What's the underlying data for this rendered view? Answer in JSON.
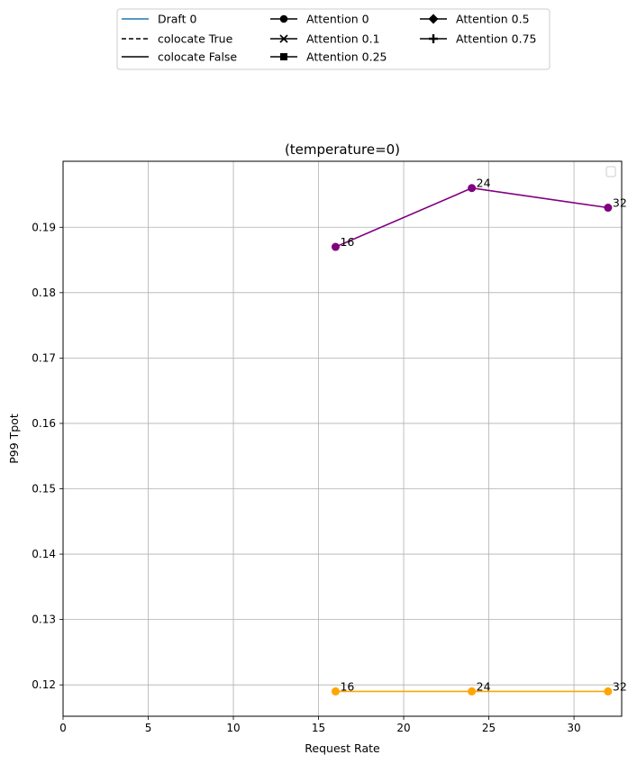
{
  "chart_data": {
    "type": "line",
    "title": "(temperature=0)",
    "xlabel": "Request Rate",
    "ylabel": "P99 Tpot",
    "xlim": [
      0,
      32.8
    ],
    "ylim": [
      0.1152,
      0.2001
    ],
    "xticks": [
      0,
      5,
      10,
      15,
      20,
      25,
      30
    ],
    "yticks": [
      0.12,
      0.13,
      0.14,
      0.15,
      0.16,
      0.17,
      0.18,
      0.19
    ],
    "grid": true,
    "legend_placement": "top-center outside",
    "legend": {
      "col1": [
        {
          "label": "Draft 0",
          "style": "solid",
          "color": "#1f77b4",
          "marker": "none"
        },
        {
          "label": "colocate True",
          "style": "dashed",
          "color": "#000000",
          "marker": "none"
        },
        {
          "label": "colocate False",
          "style": "solid",
          "color": "#000000",
          "marker": "none"
        }
      ],
      "col2": [
        {
          "label": "Attention 0",
          "style": "solid",
          "color": "#000000",
          "marker": "circle"
        },
        {
          "label": "Attention 0.1",
          "style": "solid",
          "color": "#000000",
          "marker": "x"
        },
        {
          "label": "Attention 0.25",
          "style": "solid",
          "color": "#000000",
          "marker": "square"
        }
      ],
      "col3": [
        {
          "label": "Attention 0.5",
          "style": "solid",
          "color": "#000000",
          "marker": "diamond"
        },
        {
          "label": "Attention 0.75",
          "style": "solid",
          "color": "#000000",
          "marker": "plus"
        }
      ]
    },
    "series": [
      {
        "color": "#800080",
        "marker": "circle",
        "x": [
          16,
          24,
          32
        ],
        "y": [
          0.187,
          0.196,
          0.193
        ],
        "point_labels": [
          "16",
          "24",
          "32"
        ]
      },
      {
        "color": "#ffa500",
        "marker": "circle",
        "x": [
          16,
          24,
          32
        ],
        "y": [
          0.119,
          0.119,
          0.119
        ],
        "point_labels": [
          "16",
          "24",
          "32"
        ]
      }
    ]
  }
}
